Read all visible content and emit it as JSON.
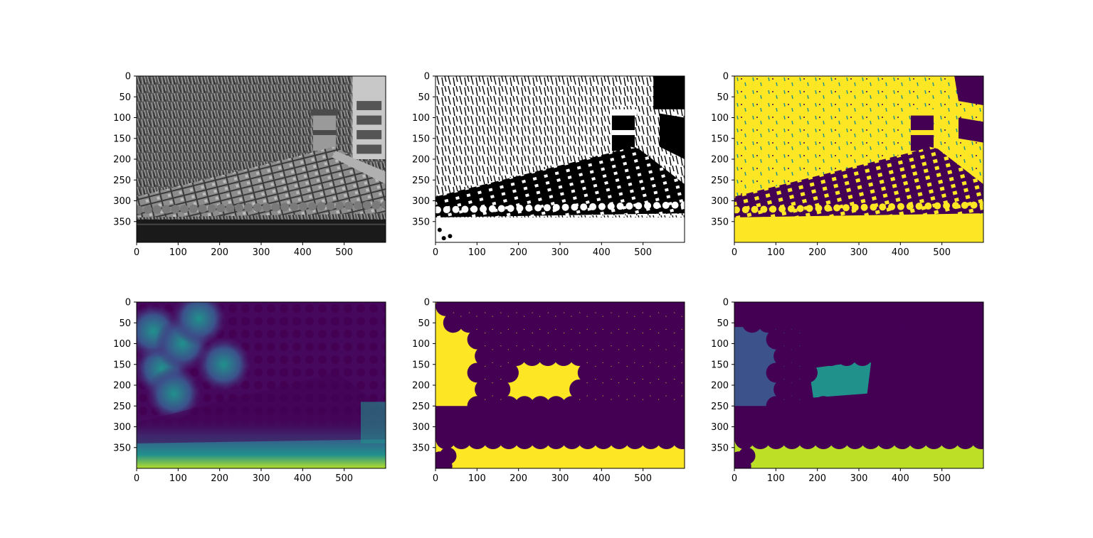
{
  "figure": {
    "layout": "2x3 grid of image panels",
    "colormaps": {
      "gray": [
        "#000000",
        "#ffffff"
      ],
      "viridis": [
        "#440154",
        "#3b528b",
        "#21918c",
        "#5ec962",
        "#fde725"
      ]
    }
  },
  "chart_data": [
    {
      "type": "heatmap",
      "description": "grayscale photo of tiled roof",
      "colormap": "gray",
      "xlim": [
        0,
        600
      ],
      "ylim": [
        400,
        0
      ],
      "x_ticks": [
        "0",
        "100",
        "200",
        "300",
        "400",
        "500"
      ],
      "y_ticks": [
        "0",
        "50",
        "100",
        "150",
        "200",
        "250",
        "300",
        "350"
      ]
    },
    {
      "type": "heatmap",
      "description": "binary threshold of roof photo",
      "colormap": "binary",
      "xlim": [
        0,
        600
      ],
      "ylim": [
        400,
        0
      ],
      "x_ticks": [
        "0",
        "100",
        "200",
        "300",
        "400",
        "500"
      ],
      "y_ticks": [
        "0",
        "50",
        "100",
        "150",
        "200",
        "250",
        "300",
        "350"
      ]
    },
    {
      "type": "heatmap",
      "description": "binary mask, viridis colormap",
      "colormap": "viridis",
      "xlim": [
        0,
        600
      ],
      "ylim": [
        400,
        0
      ],
      "x_ticks": [
        "0",
        "100",
        "200",
        "300",
        "400",
        "500"
      ],
      "y_ticks": [
        "0",
        "50",
        "100",
        "150",
        "200",
        "250",
        "300",
        "350"
      ]
    },
    {
      "type": "heatmap",
      "description": "distance transform, viridis colormap",
      "colormap": "viridis",
      "xlim": [
        0,
        600
      ],
      "ylim": [
        400,
        0
      ],
      "x_ticks": [
        "0",
        "100",
        "200",
        "300",
        "400",
        "500"
      ],
      "y_ticks": [
        "0",
        "50",
        "100",
        "150",
        "200",
        "250",
        "300",
        "350"
      ]
    },
    {
      "type": "heatmap",
      "description": "markers mask, viridis colormap",
      "colormap": "viridis",
      "xlim": [
        0,
        600
      ],
      "ylim": [
        400,
        0
      ],
      "x_ticks": [
        "0",
        "100",
        "200",
        "300",
        "400",
        "500"
      ],
      "y_ticks": [
        "0",
        "50",
        "100",
        "150",
        "200",
        "250",
        "300",
        "350"
      ]
    },
    {
      "type": "heatmap",
      "description": "watershed labels, viridis colormap",
      "colormap": "viridis",
      "xlim": [
        0,
        600
      ],
      "ylim": [
        400,
        0
      ],
      "x_ticks": [
        "0",
        "100",
        "200",
        "300",
        "400",
        "500"
      ],
      "y_ticks": [
        "0",
        "50",
        "100",
        "150",
        "200",
        "250",
        "300",
        "350"
      ]
    }
  ]
}
